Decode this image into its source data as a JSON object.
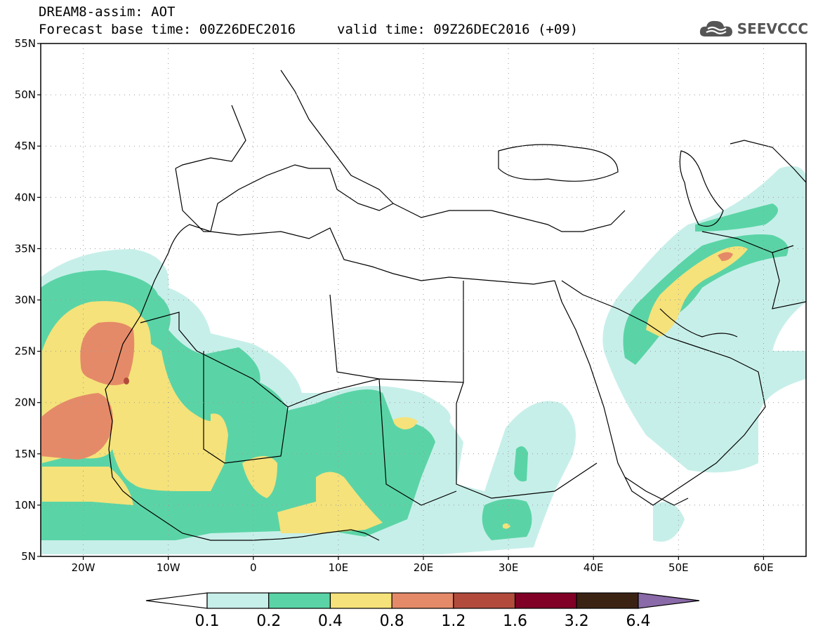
{
  "header": {
    "title": "DREAM8-assim: AOT",
    "base_time": "Forecast base time: 00Z26DEC2016",
    "valid_time": "valid time: 09Z26DEC2016 (+09)",
    "logo_text": "SEEVCCC"
  },
  "map": {
    "lon_range": [
      -25,
      65
    ],
    "lat_range": [
      5,
      55
    ],
    "lat_ticks": [
      {
        "lat": 55,
        "label": "55N"
      },
      {
        "lat": 50,
        "label": "50N"
      },
      {
        "lat": 45,
        "label": "45N"
      },
      {
        "lat": 40,
        "label": "40N"
      },
      {
        "lat": 35,
        "label": "35N"
      },
      {
        "lat": 30,
        "label": "30N"
      },
      {
        "lat": 25,
        "label": "25N"
      },
      {
        "lat": 20,
        "label": "20N"
      },
      {
        "lat": 15,
        "label": "15N"
      },
      {
        "lat": 10,
        "label": "10N"
      },
      {
        "lat": 5,
        "label": "5N"
      }
    ],
    "lon_ticks": [
      {
        "lon": -20,
        "label": "20W"
      },
      {
        "lon": -10,
        "label": "10W"
      },
      {
        "lon": 0,
        "label": "0"
      },
      {
        "lon": 10,
        "label": "10E"
      },
      {
        "lon": 20,
        "label": "20E"
      },
      {
        "lon": 30,
        "label": "30E"
      },
      {
        "lon": 40,
        "label": "40E"
      },
      {
        "lon": 50,
        "label": "50E"
      },
      {
        "lon": 60,
        "label": "60E"
      }
    ],
    "grid": true
  },
  "colorbar": {
    "colors": [
      "#ffffff",
      "#c7efe9",
      "#5ad4a6",
      "#f5e27a",
      "#e58a68",
      "#b24b3c",
      "#800026",
      "#3b2314",
      "#8a6aa8"
    ],
    "labels": [
      "0.1",
      "0.2",
      "0.4",
      "0.8",
      "1.2",
      "1.6",
      "3.2",
      "6.4"
    ]
  },
  "colors": {
    "level_01": "#c7efe9",
    "level_02": "#5ad4a6",
    "level_04": "#f5e27a",
    "level_08": "#e58a68",
    "level_12": "#b24b3c"
  }
}
